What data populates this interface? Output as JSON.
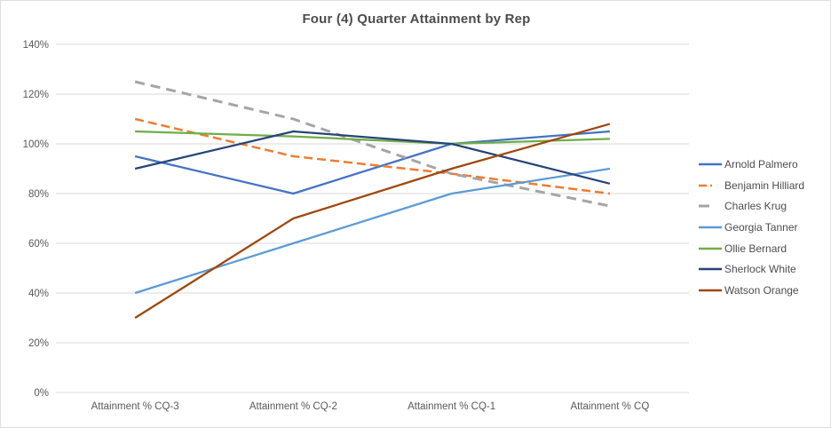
{
  "chart_data": {
    "type": "line",
    "title": "Four (4) Quarter Attainment by Rep",
    "categories": [
      "Attainment % CQ-3",
      "Attainment % CQ-2",
      "Attainment % CQ-1",
      "Attainment % CQ"
    ],
    "xlabel": "",
    "ylabel": "",
    "ylim": [
      0,
      140
    ],
    "grid": "horizontal",
    "legend_position": "right",
    "yticks": [
      {
        "value": 0,
        "label": "0%"
      },
      {
        "value": 20,
        "label": "20%"
      },
      {
        "value": 40,
        "label": "40%"
      },
      {
        "value": 60,
        "label": "60%"
      },
      {
        "value": 80,
        "label": "80%"
      },
      {
        "value": 100,
        "label": "100%"
      },
      {
        "value": 120,
        "label": "120%"
      },
      {
        "value": 140,
        "label": "140%"
      }
    ],
    "series": [
      {
        "name": "Arnold Palmero",
        "color": "#4472C4",
        "line_style": "solid",
        "values": [
          95,
          80,
          100,
          105
        ]
      },
      {
        "name": "Benjamin Hilliard",
        "color": "#ED7D31",
        "line_style": "dashed",
        "values": [
          110,
          95,
          88,
          80
        ]
      },
      {
        "name": "Charles Krug",
        "color": "#A5A5A5",
        "line_style": "dashed",
        "values": [
          125,
          110,
          88,
          75
        ]
      },
      {
        "name": "Georgia Tanner",
        "color": "#5B9BD5",
        "line_style": "solid",
        "values": [
          40,
          60,
          80,
          90
        ]
      },
      {
        "name": "Ollie Bernard",
        "color": "#70AD47",
        "line_style": "solid",
        "values": [
          105,
          103,
          100,
          102
        ]
      },
      {
        "name": "Sherlock White",
        "color": "#264478",
        "line_style": "solid",
        "values": [
          90,
          105,
          100,
          84
        ]
      },
      {
        "name": "Watson Orange",
        "color": "#9E480E",
        "line_style": "solid",
        "values": [
          30,
          70,
          90,
          108
        ]
      }
    ],
    "colors": {
      "gridline": "#D9D9D9",
      "axis_text": "#595959",
      "title_text": "#4d4d4d",
      "frame_border": "#DEDEDE",
      "background": "#FFFFFF"
    }
  }
}
